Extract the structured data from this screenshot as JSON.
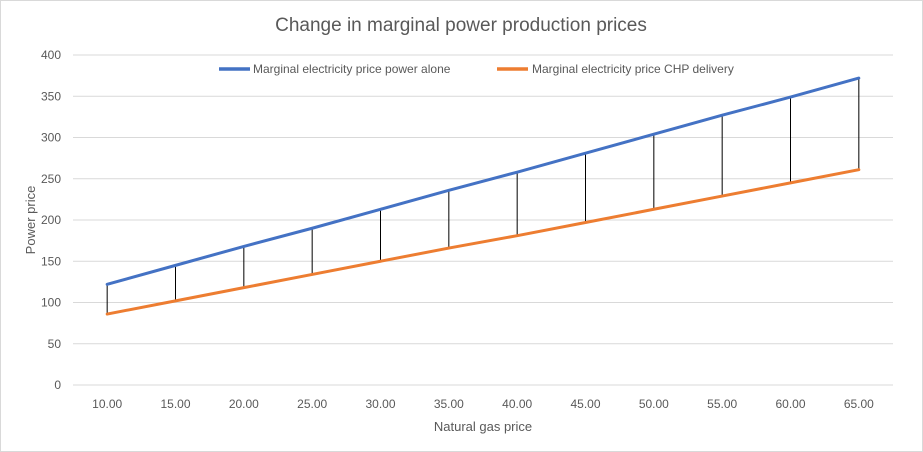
{
  "chart_data": {
    "type": "line",
    "title": "Change in marginal power production prices",
    "xlabel": "Natural gas price",
    "ylabel": "Power price",
    "x": [
      "10.00",
      "15.00",
      "20.00",
      "25.00",
      "30.00",
      "35.00",
      "40.00",
      "45.00",
      "50.00",
      "55.00",
      "60.00",
      "65.00"
    ],
    "ylim": [
      0,
      400
    ],
    "yticks": [
      "0",
      "50",
      "100",
      "150",
      "200",
      "250",
      "300",
      "350",
      "400"
    ],
    "grid": true,
    "legend_position": "top",
    "high_low_lines": true,
    "series": [
      {
        "name": "Marginal electricity price power alone",
        "color": "#4472c4",
        "values": [
          122,
          145,
          168,
          190,
          213,
          236,
          258,
          281,
          304,
          327,
          349,
          372
        ]
      },
      {
        "name": "Marginal electricity price CHP delivery",
        "color": "#ed7d31",
        "values": [
          86,
          102,
          118,
          134,
          150,
          166,
          181,
          197,
          213,
          229,
          245,
          261
        ]
      }
    ]
  }
}
